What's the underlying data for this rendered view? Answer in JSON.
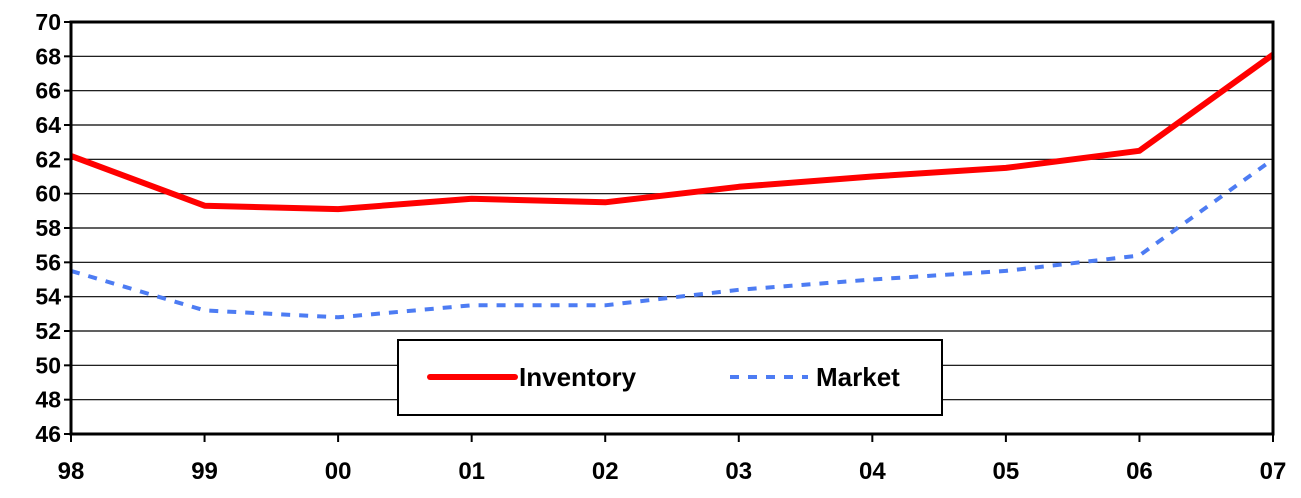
{
  "chart_data": {
    "type": "line",
    "title": "",
    "xlabel": "",
    "ylabel": "",
    "categories": [
      "98",
      "99",
      "00",
      "01",
      "02",
      "03",
      "04",
      "05",
      "06",
      "07"
    ],
    "ylim": [
      46,
      70
    ],
    "yticks": [
      "46",
      "48",
      "50",
      "52",
      "54",
      "56",
      "58",
      "60",
      "62",
      "64",
      "66",
      "68",
      "70"
    ],
    "grid": true,
    "legend_position": "bottom-center",
    "series": [
      {
        "name": "Inventory",
        "values": [
          62.2,
          59.3,
          59.1,
          59.7,
          59.5,
          60.4,
          61.0,
          61.5,
          62.5,
          68.1
        ],
        "color": "#ff0000",
        "style": "solid"
      },
      {
        "name": "Market",
        "values": [
          55.5,
          53.2,
          52.8,
          53.5,
          53.5,
          54.4,
          55.0,
          55.5,
          56.4,
          62.0
        ],
        "color": "#4d7cf3",
        "style": "dotted"
      }
    ]
  }
}
